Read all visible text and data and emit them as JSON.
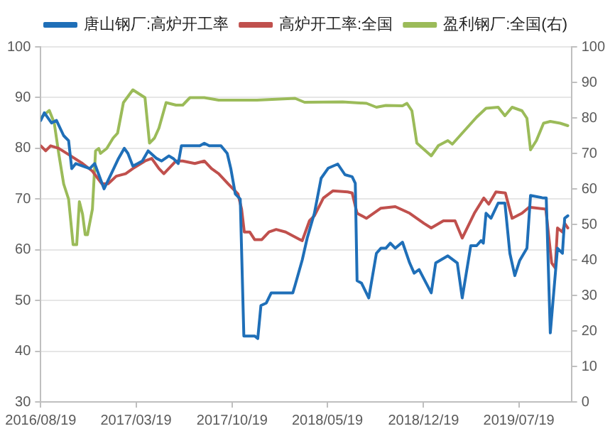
{
  "chart_data": {
    "type": "line",
    "xlim": [
      "2016-08-19",
      "2019-11-13"
    ],
    "xticks": [
      {
        "value": "2016-08-19",
        "label": "2016/08/19"
      },
      {
        "value": "2017-03-19",
        "label": "2017/03/19"
      },
      {
        "value": "2017-10-19",
        "label": "2017/10/19"
      },
      {
        "value": "2018-05-19",
        "label": "2018/05/19"
      },
      {
        "value": "2018-12-19",
        "label": "2018/12/19"
      },
      {
        "value": "2019-07-19",
        "label": "2019/07/19"
      }
    ],
    "ylim": [
      30,
      100
    ],
    "yticks": [
      30,
      40,
      50,
      60,
      70,
      80,
      90,
      100
    ],
    "y2lim": [
      0,
      100
    ],
    "y2ticks": [
      0,
      10,
      20,
      30,
      40,
      50,
      60,
      70,
      80,
      90,
      100
    ],
    "grid": "y",
    "legend": "top",
    "marker": "none",
    "line_style": "solid",
    "series": [
      {
        "name": "唐山钢厂:高炉开工率",
        "color": "#1f6fb8",
        "x": [
          "2016-08-19",
          "2016-08-27",
          "2016-09-12",
          "2016-09-23",
          "2016-10-09",
          "2016-10-20",
          "2016-10-27",
          "2016-11-05",
          "2016-12-06",
          "2016-12-17",
          "2017-01-07",
          "2017-01-23",
          "2017-02-08",
          "2017-02-21",
          "2017-03-01",
          "2017-03-12",
          "2017-03-23",
          "2017-04-02",
          "2017-04-15",
          "2017-05-04",
          "2017-05-15",
          "2017-05-31",
          "2017-06-10",
          "2017-06-21",
          "2017-06-28",
          "2017-08-08",
          "2017-08-18",
          "2017-08-29",
          "2017-09-24",
          "2017-10-08",
          "2017-10-16",
          "2017-10-26",
          "2017-11-06",
          "2017-11-14",
          "2017-12-08",
          "2017-12-15",
          "2017-12-22",
          "2018-01-03",
          "2018-01-14",
          "2018-03-03",
          "2018-03-08",
          "2018-03-24",
          "2018-04-04",
          "2018-04-20",
          "2018-05-05",
          "2018-05-21",
          "2018-06-11",
          "2018-06-27",
          "2018-07-13",
          "2018-07-20",
          "2018-07-24",
          "2018-08-03",
          "2018-08-19",
          "2018-09-05",
          "2018-09-15",
          "2018-09-26",
          "2018-10-06",
          "2018-10-17",
          "2018-11-02",
          "2018-11-18",
          "2018-11-28",
          "2018-12-09",
          "2019-01-05",
          "2019-01-15",
          "2019-02-11",
          "2019-03-04",
          "2019-03-15",
          "2019-04-03",
          "2019-04-16",
          "2019-04-26",
          "2019-05-01",
          "2019-05-07",
          "2019-05-18",
          "2019-06-03",
          "2019-06-18",
          "2019-06-29",
          "2019-07-10",
          "2019-07-21",
          "2019-08-06",
          "2019-08-14",
          "2019-09-12",
          "2019-09-18",
          "2019-09-27",
          "2019-10-13",
          "2019-10-24",
          "2019-10-29",
          "2019-11-05"
        ],
        "values": [
          85.5,
          87,
          85,
          85.5,
          82.5,
          81.5,
          76,
          77,
          76,
          77,
          72,
          75,
          78,
          80,
          79,
          76.5,
          77,
          77.5,
          79.5,
          78,
          77.5,
          78.5,
          78,
          77,
          80.5,
          80.5,
          81,
          80.5,
          80.5,
          79,
          76,
          71,
          70,
          43,
          43,
          42.5,
          49,
          49.5,
          51.5,
          51.5,
          53,
          58,
          62.3,
          67.2,
          74.1,
          76.1,
          76.9,
          74.8,
          74.4,
          73.1,
          53.9,
          53.4,
          50.5,
          59.3,
          60.3,
          60.3,
          61.3,
          60.3,
          61.5,
          57.4,
          55.4,
          56.1,
          51.5,
          57.4,
          58.8,
          57.4,
          50.5,
          60.8,
          60.8,
          61.8,
          61.3,
          67.2,
          66.2,
          69.2,
          69.2,
          59.3,
          54.9,
          57.9,
          60.3,
          70.7,
          70.2,
          70.2,
          43.6,
          60.3,
          59.3,
          66.2,
          66.7
        ]
      },
      {
        "name": "高炉开工率:全国",
        "color": "#c0504d",
        "x": [
          "2016-08-19",
          "2016-08-30",
          "2016-09-10",
          "2016-09-28",
          "2016-10-25",
          "2016-11-20",
          "2016-12-12",
          "2017-01-02",
          "2017-01-16",
          "2017-02-03",
          "2017-02-24",
          "2017-03-12",
          "2017-04-08",
          "2017-04-23",
          "2017-05-09",
          "2017-05-20",
          "2017-06-16",
          "2017-07-01",
          "2017-07-28",
          "2017-08-18",
          "2017-09-03",
          "2017-09-19",
          "2017-10-10",
          "2017-11-01",
          "2017-11-09",
          "2017-11-15",
          "2017-11-27",
          "2017-12-08",
          "2017-12-24",
          "2018-01-09",
          "2018-01-25",
          "2018-02-15",
          "2018-03-19",
          "2018-03-24",
          "2018-04-09",
          "2018-04-20",
          "2018-05-10",
          "2018-05-31",
          "2018-07-03",
          "2018-07-13",
          "2018-07-24",
          "2018-08-14",
          "2018-09-15",
          "2018-10-17",
          "2018-11-18",
          "2018-12-20",
          "2019-01-05",
          "2019-02-01",
          "2019-02-27",
          "2019-03-15",
          "2019-04-11",
          "2019-05-02",
          "2019-05-13",
          "2019-05-29",
          "2019-06-19",
          "2019-07-04",
          "2019-07-26",
          "2019-08-11",
          "2019-09-17",
          "2019-09-30",
          "2019-10-08",
          "2019-10-13",
          "2019-10-24",
          "2019-10-29",
          "2019-11-05"
        ],
        "values": [
          80.5,
          79.5,
          80.5,
          80,
          78.5,
          77,
          75.5,
          73,
          73,
          74.5,
          75,
          76,
          77.5,
          78,
          76,
          75,
          77.5,
          77.5,
          77,
          77.5,
          76,
          75,
          73,
          71,
          68,
          63.5,
          63.5,
          62,
          62,
          63.5,
          64,
          63.5,
          62,
          61.8,
          65.7,
          66.7,
          70.2,
          71.6,
          71.4,
          71.2,
          67.2,
          66.2,
          68.2,
          68.5,
          67.2,
          65.2,
          64.3,
          65.7,
          65.7,
          62.3,
          67.2,
          70.2,
          69,
          71.4,
          71.2,
          66.2,
          67.2,
          68.4,
          68,
          57.4,
          56.4,
          64.3,
          63.5,
          65.2,
          64.3
        ]
      },
      {
        "name": "盈利钢厂:全国(右)",
        "color": "#9bbb59",
        "axis": "y2",
        "x": [
          "2016-08-19",
          "2016-09-07",
          "2016-09-18",
          "2016-09-28",
          "2016-10-09",
          "2016-10-20",
          "2016-10-30",
          "2016-11-07",
          "2016-11-13",
          "2016-11-20",
          "2016-11-26",
          "2016-12-01",
          "2016-12-12",
          "2016-12-19",
          "2016-12-26",
          "2016-12-30",
          "2017-01-13",
          "2017-01-27",
          "2017-02-06",
          "2017-02-19",
          "2017-03-12",
          "2017-04-08",
          "2017-04-18",
          "2017-04-29",
          "2017-05-09",
          "2017-05-25",
          "2017-06-16",
          "2017-07-01",
          "2017-07-17",
          "2017-08-18",
          "2017-09-19",
          "2017-10-26",
          "2017-12-13",
          "2018-03-08",
          "2018-03-29",
          "2018-06-22",
          "2018-08-14",
          "2018-09-05",
          "2018-09-26",
          "2018-11-02",
          "2018-11-12",
          "2018-11-23",
          "2018-12-04",
          "2019-01-05",
          "2019-01-21",
          "2019-02-11",
          "2019-02-21",
          "2019-03-15",
          "2019-04-16",
          "2019-05-07",
          "2019-06-03",
          "2019-06-18",
          "2019-07-04",
          "2019-07-26",
          "2019-08-06",
          "2019-08-14",
          "2019-08-27",
          "2019-09-12",
          "2019-09-27",
          "2019-10-19",
          "2019-11-05"
        ],
        "values": [
          80,
          82.1,
          78.6,
          70,
          61.4,
          57.1,
          44.3,
          44.3,
          56.4,
          52.9,
          47.1,
          47.1,
          54.3,
          70.7,
          71.4,
          70,
          71.4,
          74.3,
          75.7,
          84.3,
          87.9,
          85.7,
          72.9,
          74.3,
          77.1,
          84.3,
          83.6,
          83.6,
          85.7,
          85.7,
          85,
          85,
          85,
          85.5,
          84.4,
          84.5,
          84.1,
          83,
          83.5,
          83.4,
          84.1,
          82,
          72.9,
          69.3,
          72.2,
          73.6,
          72.6,
          75.7,
          80.2,
          82.7,
          83,
          80.6,
          83,
          82,
          79.9,
          71,
          73.6,
          78.5,
          79,
          78.5,
          77.8
        ]
      }
    ]
  }
}
